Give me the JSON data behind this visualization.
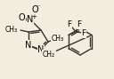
{
  "bg_color": "#f2eddc",
  "bond_color": "#333333",
  "font_size": 6.5,
  "bond_lw": 1.0
}
